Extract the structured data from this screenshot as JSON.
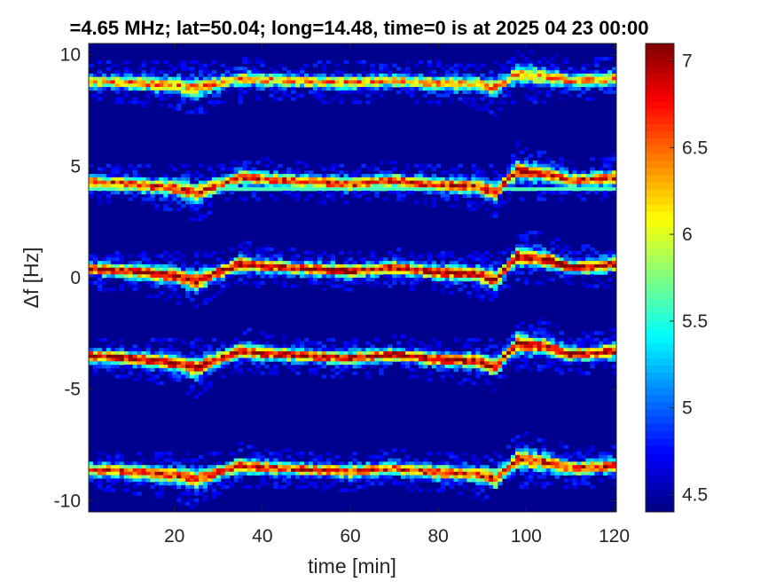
{
  "chart_data": {
    "type": "heatmap",
    "title": "=4.65 MHz;  lat=50.04; long=14.48, time=0 is at 2025 04 23 00:00",
    "xlabel": "time [min]",
    "ylabel": "Δf [Hz]",
    "xlim": [
      0.5,
      120.5
    ],
    "ylim": [
      -10.5,
      10.5
    ],
    "x_ticks": [
      20,
      40,
      60,
      80,
      100,
      120
    ],
    "x_tick_labels": [
      "20",
      "40",
      "60",
      "80",
      "100",
      "120"
    ],
    "y_ticks": [
      10,
      5,
      0,
      -5,
      -10
    ],
    "y_tick_labels": [
      "10",
      "5",
      "0",
      "-5",
      "-10"
    ],
    "colorbar": {
      "colormap": "jet",
      "clim": [
        4.4,
        7.1
      ],
      "ticks": [
        7,
        6.5,
        6,
        5.5,
        5,
        4.5
      ],
      "tick_labels": [
        "7",
        "6.5",
        "6",
        "5.5",
        "5",
        "4.5"
      ]
    },
    "background_value": 4.4,
    "background_color": "#00008f",
    "grid": false,
    "legend": "none",
    "trace_profile": {
      "x": [
        0,
        10,
        20,
        25,
        30,
        35,
        40,
        50,
        60,
        70,
        80,
        88,
        93,
        98,
        105,
        110,
        115,
        120
      ],
      "dy": [
        0.0,
        -0.1,
        -0.3,
        -0.5,
        -0.15,
        0.2,
        0.1,
        0.0,
        -0.1,
        0.05,
        -0.15,
        -0.2,
        -0.45,
        0.5,
        0.35,
        0.05,
        0.1,
        0.2
      ]
    },
    "series": [
      {
        "name": "trace at +8.8 Hz",
        "base": 8.8,
        "peak": 6.4,
        "amp": 0.6
      },
      {
        "name": "trace at +4.3 Hz",
        "base": 4.3,
        "peak": 6.8,
        "amp": 1.0
      },
      {
        "name": "trace at +0.4 Hz",
        "base": 0.4,
        "peak": 7.0,
        "amp": 1.1
      },
      {
        "name": "trace at -3.5 Hz",
        "base": -3.5,
        "peak": 7.0,
        "amp": 1.1
      },
      {
        "name": "trace at -8.6 Hz",
        "base": -8.6,
        "peak": 6.8,
        "amp": 0.9
      }
    ],
    "horizontal_line": {
      "y": 4.0,
      "value": 5.6
    }
  }
}
